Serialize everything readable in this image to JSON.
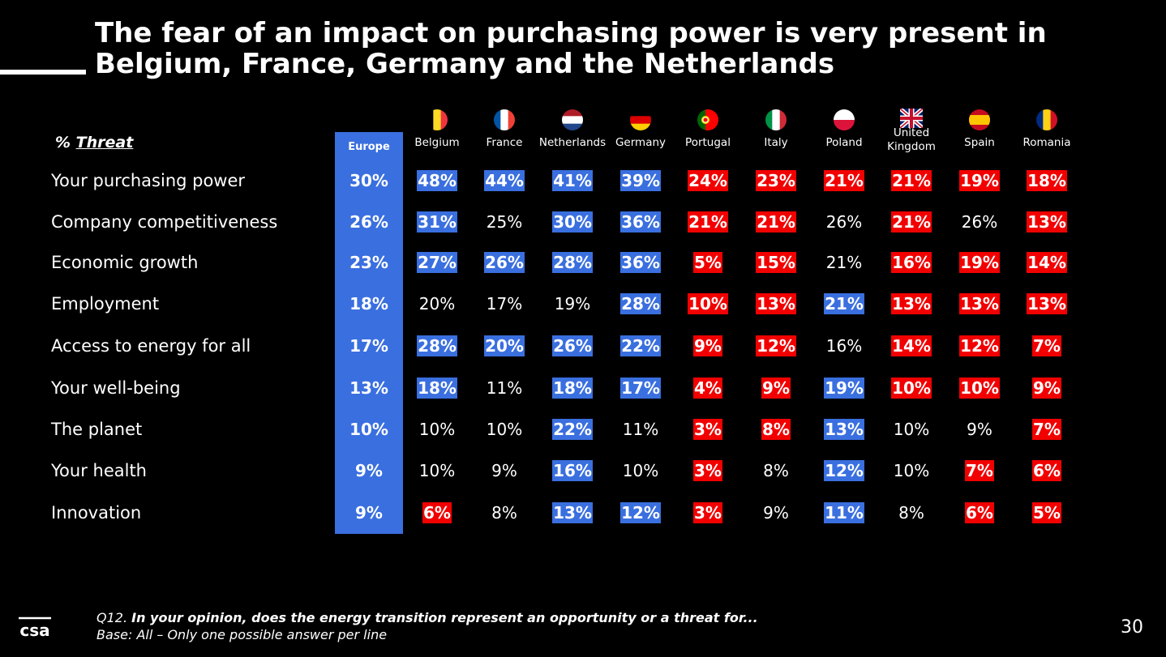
{
  "slide": {
    "title_line1": "The fear of an impact on purchasing power is very present in",
    "title_line2": "Belgium, France, Germany and the Netherlands",
    "threat_prefix": "% ",
    "threat_word": "Threat",
    "europe_label": "Europe",
    "question_prefix": "Q12. ",
    "question": "In your opinion, does the energy transition represent an opportunity or a threat for...",
    "base": "Base: All – Only one possible answer per line",
    "page_number": "30",
    "logo_text": "csa"
  },
  "colors": {
    "blue": "#3a6fdf",
    "red": "#f20000",
    "background": "#000000"
  },
  "chart_data": {
    "type": "table",
    "columns": [
      "Europe",
      "Belgium",
      "France",
      "Netherlands",
      "Germany",
      "Portugal",
      "Italy",
      "Poland",
      "United Kingdom",
      "Spain",
      "Romania"
    ],
    "column_labels": [
      "Europe",
      "Belgium",
      "France",
      "Netherlands",
      "Germany",
      "Portugal",
      "Italy",
      "Poland",
      "United\nKingdom",
      "Spain",
      "Romania"
    ],
    "flags": [
      "",
      "belgium-flag-icon",
      "france-flag-icon",
      "netherlands-flag-icon",
      "germany-flag-icon",
      "portugal-flag-icon",
      "italy-flag-icon",
      "poland-flag-icon",
      "uk-flag-icon",
      "spain-flag-icon",
      "romania-flag-icon"
    ],
    "rows": [
      {
        "label": "Your purchasing power",
        "values": [
          30,
          48,
          44,
          41,
          39,
          24,
          23,
          21,
          21,
          19,
          18
        ],
        "highlight": [
          "eu",
          "blue",
          "blue",
          "blue",
          "blue",
          "red",
          "red",
          "red",
          "red",
          "red",
          "red"
        ]
      },
      {
        "label": "Company competitiveness",
        "values": [
          26,
          31,
          25,
          30,
          36,
          21,
          21,
          26,
          21,
          26,
          13
        ],
        "highlight": [
          "eu",
          "blue",
          "none",
          "blue",
          "blue",
          "red",
          "red",
          "none",
          "red",
          "none",
          "red"
        ]
      },
      {
        "label": "Economic growth",
        "values": [
          23,
          27,
          26,
          28,
          36,
          5,
          15,
          21,
          16,
          19,
          14
        ],
        "highlight": [
          "eu",
          "blue",
          "blue",
          "blue",
          "blue",
          "red",
          "red",
          "none",
          "red",
          "red",
          "red"
        ]
      },
      {
        "label": "Employment",
        "values": [
          18,
          20,
          17,
          19,
          28,
          10,
          13,
          21,
          13,
          13,
          13
        ],
        "highlight": [
          "eu",
          "none",
          "none",
          "none",
          "blue",
          "red",
          "red",
          "blue",
          "red",
          "red",
          "red"
        ]
      },
      {
        "label": "Access to energy for all",
        "values": [
          17,
          28,
          20,
          26,
          22,
          9,
          12,
          16,
          14,
          12,
          7
        ],
        "highlight": [
          "eu",
          "blue",
          "blue",
          "blue",
          "blue",
          "red",
          "red",
          "none",
          "red",
          "red",
          "red"
        ]
      },
      {
        "label": "Your well-being",
        "values": [
          13,
          18,
          11,
          18,
          17,
          4,
          9,
          19,
          10,
          10,
          9
        ],
        "highlight": [
          "eu",
          "blue",
          "none",
          "blue",
          "blue",
          "red",
          "red",
          "blue",
          "red",
          "red",
          "red"
        ]
      },
      {
        "label": "The planet",
        "values": [
          10,
          10,
          10,
          22,
          11,
          3,
          8,
          13,
          10,
          9,
          7
        ],
        "highlight": [
          "eu",
          "none",
          "none",
          "blue",
          "none",
          "red",
          "red",
          "blue",
          "none",
          "none",
          "red"
        ]
      },
      {
        "label": "Your health",
        "values": [
          9,
          10,
          9,
          16,
          10,
          3,
          8,
          12,
          10,
          7,
          6
        ],
        "highlight": [
          "eu",
          "none",
          "none",
          "blue",
          "none",
          "red",
          "none",
          "blue",
          "none",
          "red",
          "red"
        ]
      },
      {
        "label": "Innovation",
        "values": [
          9,
          6,
          8,
          13,
          12,
          3,
          9,
          11,
          8,
          6,
          5
        ],
        "highlight": [
          "eu",
          "red",
          "none",
          "blue",
          "blue",
          "red",
          "none",
          "blue",
          "none",
          "red",
          "red"
        ]
      }
    ],
    "unit": "%"
  }
}
